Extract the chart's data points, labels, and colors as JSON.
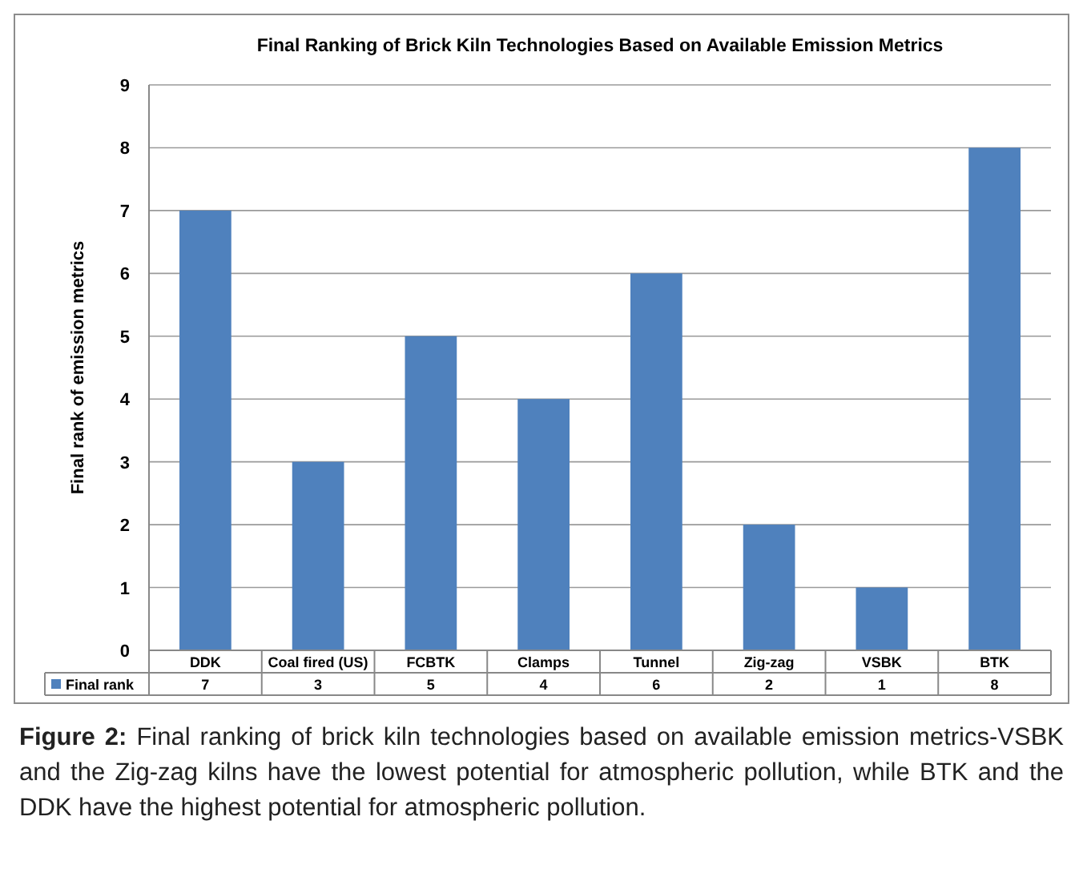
{
  "chart_data": {
    "type": "bar",
    "title": "Final Ranking of Brick Kiln Technologies Based on Available Emission Metrics",
    "ylabel": "Final rank of emission metrics",
    "categories": [
      "DDK",
      "Coal fired (US)",
      "FCBTK",
      "Clamps",
      "Tunnel",
      "Zig-zag",
      "VSBK",
      "BTK"
    ],
    "series": [
      {
        "name": "Final rank",
        "color": "#4f81bd",
        "values": [
          7,
          3,
          5,
          4,
          6,
          2,
          1,
          8
        ]
      }
    ],
    "ylim": [
      0,
      9
    ],
    "yticks": [
      0,
      1,
      2,
      3,
      4,
      5,
      6,
      7,
      8,
      9
    ],
    "grid": "y",
    "legend": "bottom",
    "data_labels": true,
    "annotations": [
      "Figure 2: Final ranking of brick kiln technologies based on available emission metrics-VSBK and the Zig-zag kilns have the lowest potential for atmospheric pollution, while BTK and the DDK have the highest potential for atmospheric pollution."
    ]
  }
}
